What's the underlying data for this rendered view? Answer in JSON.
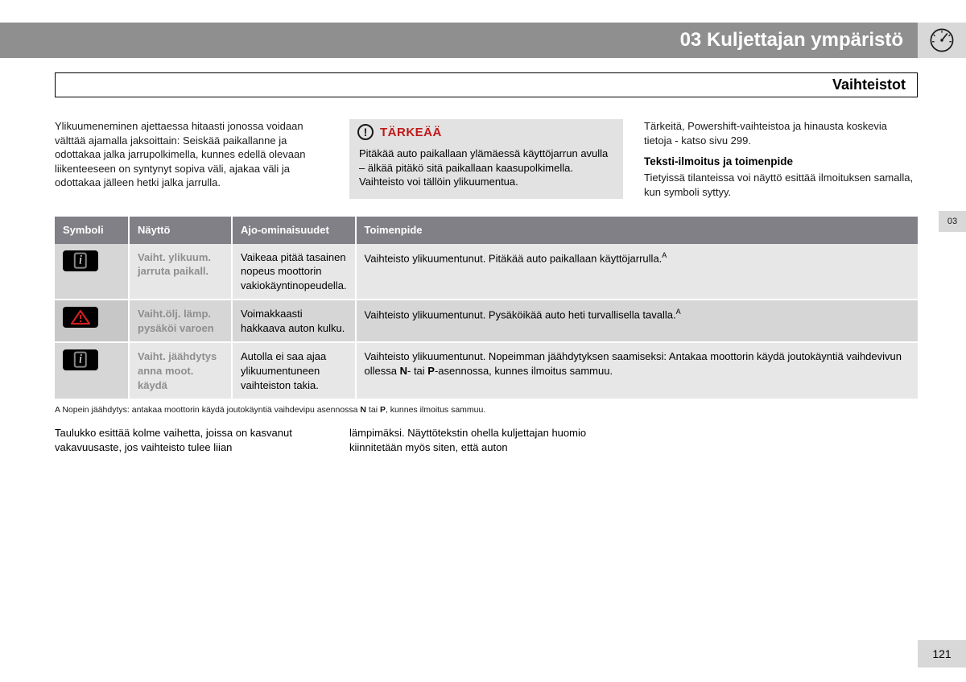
{
  "header": {
    "chapter": "03 Kuljettajan ympäristö"
  },
  "section_title": "Vaihteistot",
  "side_tab": "03",
  "page_number": "121",
  "col_left": {
    "para": "Ylikuumeneminen ajettaessa hitaasti jonossa voidaan välttää ajamalla jaksoittain: Seiskää paikallanne ja odottakaa jalka jarrupolkimella, kunnes edellä olevaan liikenteeseen on syntynyt sopiva väli, ajakaa väli ja odottakaa jälleen hetki jalka jarrulla."
  },
  "important_box": {
    "label": "TÄRKEÄÄ",
    "body": "Pitäkää auto paikallaan ylämäessä käyttöjarrun avulla – älkää pitäkö sitä paikallaan kaasupolkimella. Vaihteisto voi tällöin ylikuumentua."
  },
  "col_right": {
    "para1": "Tärkeitä, Powershift-vaihteistoa ja hinausta koskevia tietoja - katso sivu 299.",
    "subtitle": "Teksti-ilmoitus ja toimenpide",
    "para2": "Tietyissä tilanteissa voi näyttö esittää ilmoituksen samalla, kun symboli syttyy."
  },
  "table": {
    "headers": {
      "symbol": "Symboli",
      "display": "Näyttö",
      "properties": "Ajo-ominaisuudet",
      "action": "Toimenpide"
    },
    "rows": [
      {
        "symbol_type": "info",
        "display": "Vaiht. ylikuum. jarruta paikall.",
        "properties": "Vaikeaa pitää tasainen nopeus moottorin vakiokäyntinopeudella.",
        "action": "Vaihteisto ylikuumentunut. Pitäkää auto paikallaan käyttöjarrulla.",
        "action_sup": "A"
      },
      {
        "symbol_type": "warn",
        "display": "Vaiht.ölj. lämp. pysäköi varoen",
        "properties": "Voimakkaasti hakkaava auton kulku.",
        "action": "Vaihteisto ylikuumentunut. Pysäköikää auto heti turvallisella tavalla.",
        "action_sup": "A"
      },
      {
        "symbol_type": "info",
        "display": "Vaiht. jäähdytys anna moot. käydä",
        "properties": "Autolla ei saa ajaa ylikuumentuneen vaihteiston takia.",
        "action_html": "Vaihteisto ylikuumentunut. Nopeimman jäähdytyksen saamiseksi: Antakaa moottorin käydä joutokäyntiä vaihdevivun ollessa <b>N</b>- tai <b>P</b>-asennossa, kunnes ilmoitus sammuu."
      }
    ]
  },
  "footnote_html": "A  Nopein jäähdytys: antakaa moottorin käydä joutokäyntiä vaihdevipu asennossa <b>N</b> tai <b>P</b>, kunnes ilmoitus sammuu.",
  "bottom": {
    "left": "Taulukko esittää kolme vaihetta, joissa on kasvanut vakavuusaste, jos vaihteisto tulee liian",
    "right": "lämpimäksi. Näyttötekstin ohella kuljettajan huomio kiinnitetään myös siten, että auton"
  }
}
